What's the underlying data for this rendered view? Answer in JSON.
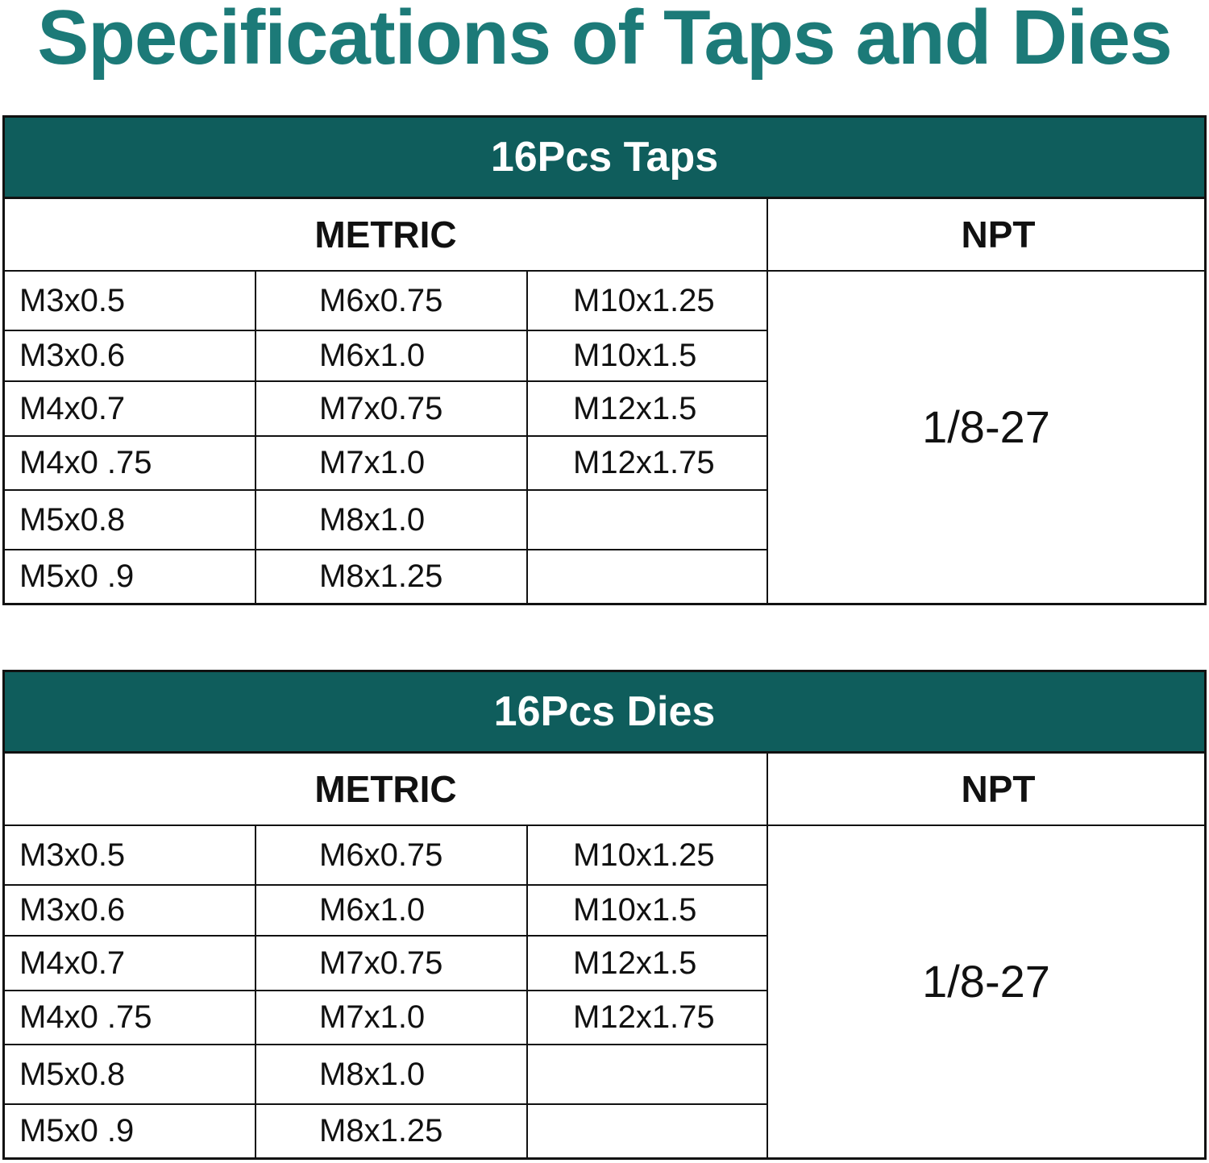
{
  "title": "Specifications of Taps and Dies",
  "tables": [
    {
      "title": "16Pcs Taps",
      "headers": [
        "METRIC",
        "NPT"
      ],
      "metric_columns": [
        [
          "M3x0.5",
          "M3x0.6",
          "M4x0.7",
          "M4x0 .75",
          "M5x0.8",
          "M5x0 .9"
        ],
        [
          "M6x0.75",
          "M6x1.0",
          "M7x0.75",
          "M7x1.0",
          "M8x1.0",
          "M8x1.25"
        ],
        [
          "M10x1.25",
          "M10x1.5",
          "M12x1.5",
          "M12x1.75"
        ]
      ],
      "npt": "1/8-27"
    },
    {
      "title": "16Pcs Dies",
      "headers": [
        "METRIC",
        "NPT"
      ],
      "metric_columns": [
        [
          "M3x0.5",
          "M3x0.6",
          "M4x0.7",
          "M4x0 .75",
          "M5x0.8",
          "M5x0 .9"
        ],
        [
          "M6x0.75",
          "M6x1.0",
          "M7x0.75",
          "M7x1.0",
          "M8x1.0",
          "M8x1.25"
        ],
        [
          "M10x1.25",
          "M10x1.5",
          "M12x1.5",
          "M12x1.75"
        ]
      ],
      "npt": "1/8-27"
    }
  ]
}
